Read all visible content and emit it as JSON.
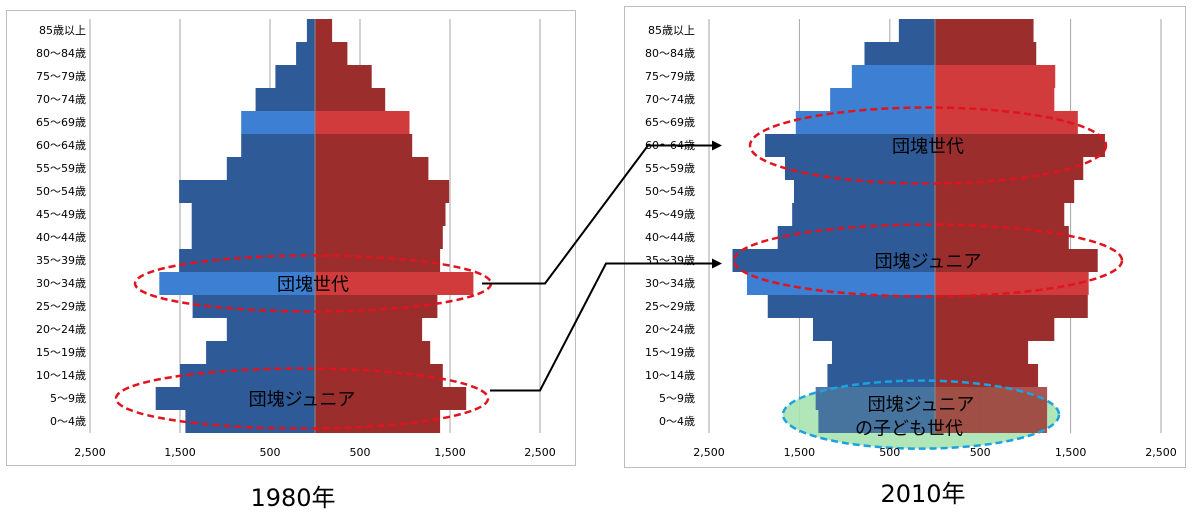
{
  "chart_data": [
    {
      "type": "bar",
      "subtype": "population-pyramid",
      "year_label": "1980年",
      "categories": [
        "0〜4歳",
        "5〜9歳",
        "10〜14歳",
        "15〜19歳",
        "20〜24歳",
        "25〜29歳",
        "30〜34歳",
        "35〜39歳",
        "40〜44歳",
        "45〜49歳",
        "50〜54歳",
        "55〜59歳",
        "60〜64歳",
        "65〜69歳",
        "70〜74歳",
        "75〜79歳",
        "80〜84歳",
        "85歳以上"
      ],
      "series": [
        {
          "side": "left",
          "color": "#2e5a98",
          "highlight_color": "#3c7fd3",
          "values": [
            1440,
            1770,
            1500,
            1210,
            980,
            1360,
            1730,
            1510,
            1370,
            1370,
            1510,
            980,
            820,
            820,
            660,
            440,
            210,
            90
          ]
        },
        {
          "side": "right",
          "color": "#9b2d2d",
          "highlight_color": "#d13b3b",
          "values": [
            1390,
            1680,
            1420,
            1280,
            1190,
            1360,
            1760,
            1390,
            1420,
            1450,
            1490,
            1260,
            1080,
            1050,
            780,
            630,
            360,
            190
          ]
        }
      ],
      "highlight_rows": [
        "30〜34歳",
        "65〜69歳"
      ],
      "xticks": [
        "2,500",
        "1,500",
        "500",
        "500",
        "1,500",
        "2,500"
      ],
      "xlim": [
        -2500,
        2500
      ],
      "grid": true,
      "annotations": [
        {
          "text": "団塊世代",
          "row": "30〜34歳",
          "style": "red-dashed-ellipse"
        },
        {
          "text": "団塊ジュニア",
          "row": "5〜9歳",
          "style": "red-dashed-ellipse"
        }
      ]
    },
    {
      "type": "bar",
      "subtype": "population-pyramid",
      "year_label": "2010年",
      "categories": [
        "0〜4歳",
        "5〜9歳",
        "10〜14歳",
        "15〜19歳",
        "20〜24歳",
        "25〜29歳",
        "30〜34歳",
        "35〜39歳",
        "40〜44歳",
        "45〜49歳",
        "50〜54歳",
        "55〜59歳",
        "60〜64歳",
        "65〜69歳",
        "70〜74歳",
        "75〜79歳",
        "80〜84歳",
        "85歳以上"
      ],
      "series": [
        {
          "side": "left",
          "color": "#2e5a98",
          "highlight_color": "#3c7fd3",
          "values": [
            1290,
            1320,
            1190,
            1140,
            1350,
            1850,
            2080,
            2240,
            1740,
            1580,
            1560,
            1660,
            1880,
            1540,
            1160,
            920,
            780,
            400
          ]
        },
        {
          "side": "right",
          "color": "#9b2d2d",
          "highlight_color": "#d13b3b",
          "values": [
            1240,
            1240,
            1140,
            1030,
            1320,
            1690,
            1700,
            1800,
            1480,
            1430,
            1540,
            1640,
            1880,
            1580,
            1320,
            1330,
            1120,
            1090
          ]
        }
      ],
      "highlight_rows": [
        "30〜34歳",
        "65〜69歳",
        "70〜74歳",
        "75〜79歳"
      ],
      "xticks": [
        "2,500",
        "1,500",
        "500",
        "500",
        "1,500",
        "2,500"
      ],
      "xlim": [
        -2500,
        2500
      ],
      "grid": true,
      "annotations": [
        {
          "text": "団塊世代",
          "row": "60〜64歳",
          "style": "red-dashed-ellipse"
        },
        {
          "text": "団塊ジュニア",
          "row": "35〜39歳",
          "style": "red-dashed-ellipse"
        },
        {
          "text": "団塊ジュニア",
          "text2": "の子ども世代",
          "row": "0〜4歳",
          "style": "blue-dashed-ellipse"
        }
      ]
    }
  ],
  "colors": {
    "annotation_red": "#e0141e",
    "annotation_blue": "#1aa3e0",
    "grid": "#a6a6a6",
    "axis": "#888888",
    "child_fill": "#a9e3b0"
  }
}
